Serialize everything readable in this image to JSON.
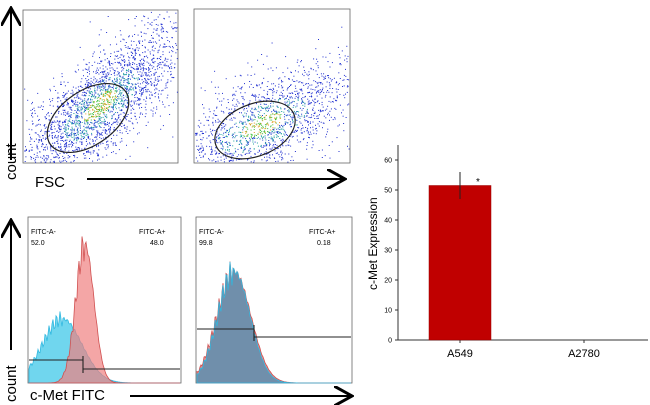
{
  "scatter_axes": {
    "y_label": "count",
    "x_label": "FSC"
  },
  "histogram_axes": {
    "y_label": "count",
    "x_label": "c-Met FITC"
  },
  "histograms": [
    {
      "gate_neg_label": "FITC-A-",
      "gate_neg_value": "52.0",
      "gate_pos_label": "FITC-A+",
      "gate_pos_value": "48.0"
    },
    {
      "gate_neg_label": "FITC-A-",
      "gate_neg_value": "99.8",
      "gate_pos_label": "FITC-A+",
      "gate_pos_value": "0.18"
    }
  ],
  "colors": {
    "bar": "#c00000",
    "control_hist": "#40c8e8",
    "sample_hist": "#f08080",
    "scatter": "#2030d0"
  },
  "chart_data": {
    "type": "bar",
    "categories": [
      "A549",
      "A2780"
    ],
    "values": [
      51.5,
      0
    ],
    "errors": [
      4.5,
      0
    ],
    "annotations": [
      "*",
      ""
    ],
    "ylabel": "c-Met Expression",
    "xlabel": "",
    "ylim": [
      0,
      65
    ],
    "yticks": [
      "0",
      "10",
      "20",
      "30",
      "40",
      "50",
      "60"
    ],
    "grid": false
  }
}
